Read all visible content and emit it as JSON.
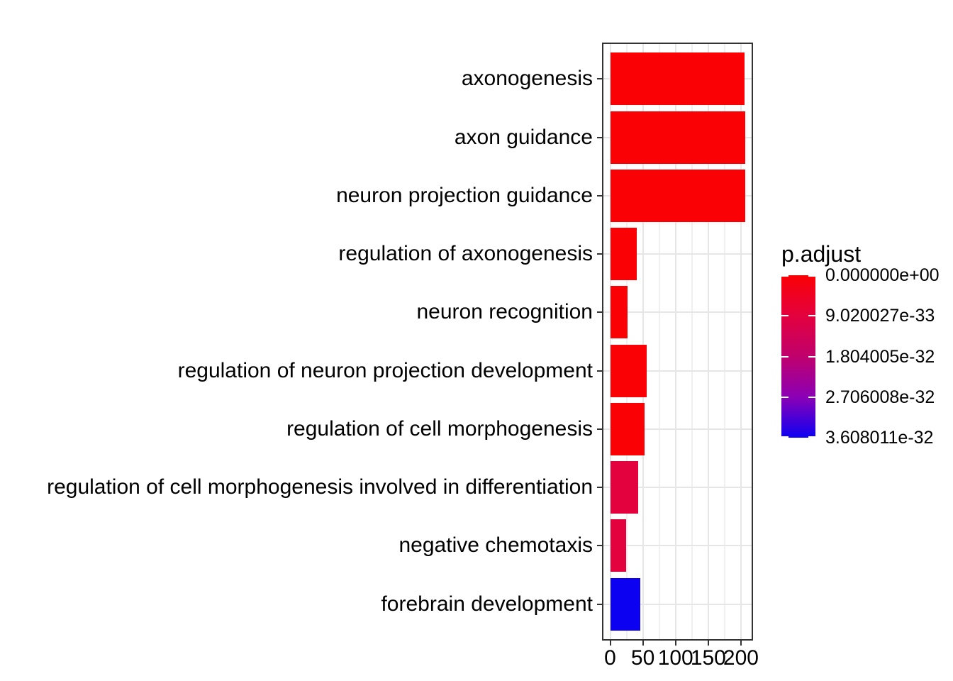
{
  "chart_data": {
    "type": "bar",
    "orientation": "horizontal",
    "title": "",
    "xlabel": "",
    "ylabel": "",
    "grid": true,
    "categories": [
      "axonogenesis",
      "axon guidance",
      "neuron projection guidance",
      "regulation of axonogenesis",
      "neuron recognition",
      "regulation of neuron projection development",
      "regulation of cell morphogenesis",
      "regulation of cell morphogenesis involved in differentiation",
      "negative chemotaxis",
      "forebrain development"
    ],
    "values": [
      205,
      206,
      206,
      41,
      27,
      56,
      53,
      43,
      24,
      46
    ],
    "bar_colors": [
      "#FA0105",
      "#FA0105",
      "#FA0105",
      "#FA0105",
      "#FA0105",
      "#FA0105",
      "#FA0105",
      "#E3013E",
      "#E3013E",
      "#0D01F2"
    ],
    "x_ticks": [
      0,
      50,
      100,
      150,
      200
    ],
    "x_tick_labels": [
      "0",
      "50",
      "100",
      "150",
      "200"
    ],
    "x_minor_ticks": [
      25,
      75,
      125,
      175
    ],
    "xlim": [
      0,
      206
    ],
    "legend": {
      "title": "p.adjust",
      "position": "right",
      "type": "gradient",
      "labels": [
        "0.000000e+00",
        "9.020027e-33",
        "1.804005e-32",
        "2.706008e-32",
        "3.608011e-32"
      ],
      "gradient_stops": [
        {
          "pos": 0.0,
          "color": "#FA0105"
        },
        {
          "pos": 0.25,
          "color": "#E3013E"
        },
        {
          "pos": 0.5,
          "color": "#C0016C"
        },
        {
          "pos": 0.75,
          "color": "#8B00B5"
        },
        {
          "pos": 1.0,
          "color": "#0D01F2"
        }
      ]
    },
    "colors": {
      "grid_major": "#E6E6E6",
      "grid_minor": "#F0F0F0",
      "panel_border": "#333333",
      "axis_tick": "#333333",
      "text": "#000000",
      "background": "#FFFFFF"
    }
  }
}
